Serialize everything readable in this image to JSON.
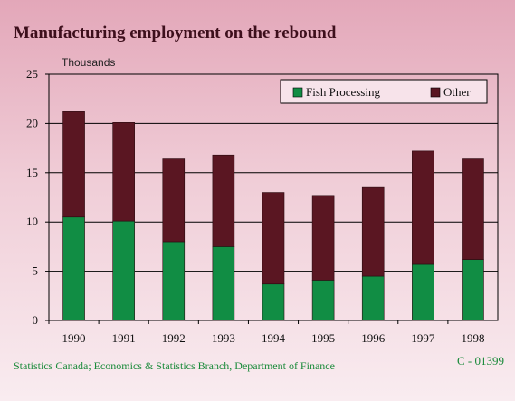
{
  "title": "Manufacturing employment on the rebound",
  "source": "Statistics Canada; Economics & Statistics Branch, Department of Finance",
  "code": "C - 01399",
  "colors": {
    "fish": "#118d44",
    "other": "#5a1622",
    "grid": "#000000"
  },
  "chart_data": {
    "type": "bar",
    "stacked": true,
    "categories": [
      "1990",
      "1991",
      "1992",
      "1993",
      "1994",
      "1995",
      "1996",
      "1997",
      "1998"
    ],
    "series": [
      {
        "name": "Fish Processing",
        "values": [
          10.5,
          10.1,
          8.0,
          7.5,
          3.7,
          4.1,
          4.5,
          5.7,
          6.2
        ]
      },
      {
        "name": "Other",
        "values": [
          10.7,
          10.0,
          8.4,
          9.3,
          9.3,
          8.6,
          9.0,
          11.5,
          10.2
        ]
      }
    ],
    "ylabel": "Thousands",
    "ylim": [
      0,
      25
    ],
    "yticks": [
      "0",
      "5",
      "10",
      "15",
      "20",
      "25"
    ],
    "grid": true,
    "legend_position": "top-right"
  }
}
